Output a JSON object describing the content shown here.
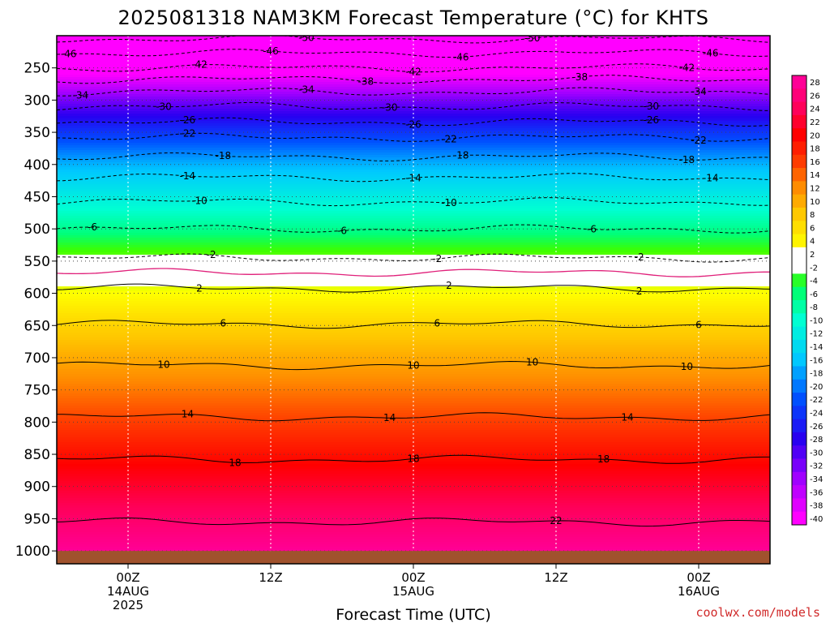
{
  "chart_data": {
    "type": "heatmap",
    "title": "2025081318 NAM3KM Forecast Temperature (°C) for KHTS",
    "xlabel": "Forecast Time (UTC)",
    "ylabel": "",
    "credit": "coolwx.com/models",
    "y_axis": {
      "ticks": [
        250,
        300,
        350,
        400,
        450,
        500,
        550,
        600,
        650,
        700,
        750,
        800,
        850,
        900,
        950,
        1000
      ],
      "tick_labels": [
        "250",
        "300",
        "350",
        "400",
        "450",
        "500",
        "550",
        "600",
        "650",
        "700",
        "750",
        "800",
        "850",
        "900",
        "950",
        "1000"
      ],
      "range": [
        200,
        1020
      ],
      "inverted": true
    },
    "x_axis": {
      "unit": "forecast hour",
      "range": [
        0,
        60
      ],
      "ticks": [
        {
          "hour": 6,
          "lines": [
            "00Z",
            "14AUG",
            "2025"
          ]
        },
        {
          "hour": 18,
          "lines": [
            "12Z"
          ]
        },
        {
          "hour": 30,
          "lines": [
            "00Z",
            "15AUG"
          ]
        },
        {
          "hour": 42,
          "lines": [
            "12Z"
          ]
        },
        {
          "hour": 54,
          "lines": [
            "00Z",
            "16AUG"
          ]
        }
      ]
    },
    "grid": true,
    "surface_fill": {
      "pressure_top": 1000,
      "color": "#a0522d"
    },
    "colorbar": {
      "placement": "right",
      "levels": [
        28,
        26,
        24,
        22,
        20,
        18,
        16,
        14,
        12,
        10,
        8,
        6,
        4,
        2,
        -2,
        -4,
        -6,
        -8,
        -10,
        -12,
        -14,
        -16,
        -18,
        -20,
        -22,
        -24,
        -26,
        -28,
        -30,
        -32,
        -34,
        -36,
        -38,
        -40
      ]
    },
    "profile": {
      "pressure": [
        200,
        250,
        300,
        350,
        400,
        450,
        500,
        550,
        600,
        650,
        700,
        750,
        800,
        850,
        900,
        950,
        1000
      ],
      "temperature": [
        -52,
        -42,
        -32,
        -24,
        -17,
        -12,
        -7,
        -1,
        3,
        7,
        10,
        13,
        16,
        19,
        22,
        25,
        28
      ]
    },
    "contours": [
      {
        "value": -50,
        "dashed": true,
        "pressure": 205,
        "labels": [
          {
            "hour": 21,
            "text": "50"
          },
          {
            "hour": 40,
            "text": "50"
          }
        ]
      },
      {
        "value": -46,
        "dashed": true,
        "pressure": 227,
        "labels": [
          {
            "hour": 1,
            "text": "46"
          },
          {
            "hour": 18,
            "text": "46"
          },
          {
            "hour": 34,
            "text": "46"
          },
          {
            "hour": 55,
            "text": "46"
          }
        ]
      },
      {
        "value": -42,
        "dashed": true,
        "pressure": 250,
        "labels": [
          {
            "hour": 12,
            "text": "42"
          },
          {
            "hour": 30,
            "text": "42"
          },
          {
            "hour": 53,
            "text": "42"
          }
        ]
      },
      {
        "value": -38,
        "dashed": true,
        "pressure": 268,
        "labels": [
          {
            "hour": 26,
            "text": "38"
          },
          {
            "hour": 44,
            "text": "38"
          }
        ]
      },
      {
        "value": -34,
        "dashed": true,
        "pressure": 287,
        "labels": [
          {
            "hour": 2,
            "text": "34"
          },
          {
            "hour": 21,
            "text": "34"
          },
          {
            "hour": 54,
            "text": "34"
          }
        ]
      },
      {
        "value": -30,
        "dashed": true,
        "pressure": 310,
        "labels": [
          {
            "hour": 9,
            "text": "30"
          },
          {
            "hour": 28,
            "text": "30"
          },
          {
            "hour": 50,
            "text": "30"
          }
        ]
      },
      {
        "value": -26,
        "dashed": true,
        "pressure": 334,
        "labels": [
          {
            "hour": 11,
            "text": "26"
          },
          {
            "hour": 30,
            "text": "26"
          },
          {
            "hour": 50,
            "text": "26"
          }
        ]
      },
      {
        "value": -22,
        "dashed": true,
        "pressure": 358,
        "labels": [
          {
            "hour": 11,
            "text": "22"
          },
          {
            "hour": 33,
            "text": "22"
          },
          {
            "hour": 54,
            "text": "22"
          }
        ]
      },
      {
        "value": -18,
        "dashed": true,
        "pressure": 388,
        "labels": [
          {
            "hour": 14,
            "text": "18"
          },
          {
            "hour": 34,
            "text": "18"
          },
          {
            "hour": 53,
            "text": "18"
          }
        ]
      },
      {
        "value": -14,
        "dashed": true,
        "pressure": 420,
        "labels": [
          {
            "hour": 11,
            "text": "14"
          },
          {
            "hour": 30,
            "text": "14"
          },
          {
            "hour": 55,
            "text": "14"
          }
        ]
      },
      {
        "value": -10,
        "dashed": true,
        "pressure": 458,
        "labels": [
          {
            "hour": 12,
            "text": "10"
          },
          {
            "hour": 33,
            "text": "10"
          }
        ]
      },
      {
        "value": -6,
        "dashed": true,
        "pressure": 500,
        "labels": [
          {
            "hour": 3,
            "text": "6"
          },
          {
            "hour": 24,
            "text": "6"
          },
          {
            "hour": 45,
            "text": "6"
          }
        ]
      },
      {
        "value": -2,
        "dashed": true,
        "pressure": 545,
        "labels": [
          {
            "hour": 13,
            "text": "2"
          },
          {
            "hour": 32,
            "text": "2"
          },
          {
            "hour": 49,
            "text": "2"
          }
        ]
      },
      {
        "value": 0,
        "dashed": false,
        "magenta": true,
        "pressure": 568,
        "labels": []
      },
      {
        "value": 2,
        "dashed": false,
        "pressure": 592,
        "labels": [
          {
            "hour": 12,
            "text": "2"
          },
          {
            "hour": 33,
            "text": "2"
          },
          {
            "hour": 49,
            "text": "2"
          }
        ]
      },
      {
        "value": 6,
        "dashed": false,
        "pressure": 648,
        "labels": [
          {
            "hour": 14,
            "text": "6"
          },
          {
            "hour": 32,
            "text": "6"
          },
          {
            "hour": 54,
            "text": "6"
          }
        ]
      },
      {
        "value": 10,
        "dashed": false,
        "pressure": 712,
        "labels": [
          {
            "hour": 9,
            "text": "10"
          },
          {
            "hour": 30,
            "text": "10"
          },
          {
            "hour": 40,
            "text": "10"
          },
          {
            "hour": 53,
            "text": "10"
          }
        ]
      },
      {
        "value": 14,
        "dashed": false,
        "pressure": 792,
        "labels": [
          {
            "hour": 11,
            "text": "14"
          },
          {
            "hour": 28,
            "text": "14"
          },
          {
            "hour": 48,
            "text": "14"
          }
        ]
      },
      {
        "value": 18,
        "dashed": false,
        "pressure": 858,
        "labels": [
          {
            "hour": 15,
            "text": "18"
          },
          {
            "hour": 30,
            "text": "18"
          },
          {
            "hour": 46,
            "text": "18"
          }
        ]
      },
      {
        "value": 22,
        "dashed": false,
        "pressure": 955,
        "labels": [
          {
            "hour": 42,
            "text": "22"
          }
        ]
      }
    ]
  }
}
